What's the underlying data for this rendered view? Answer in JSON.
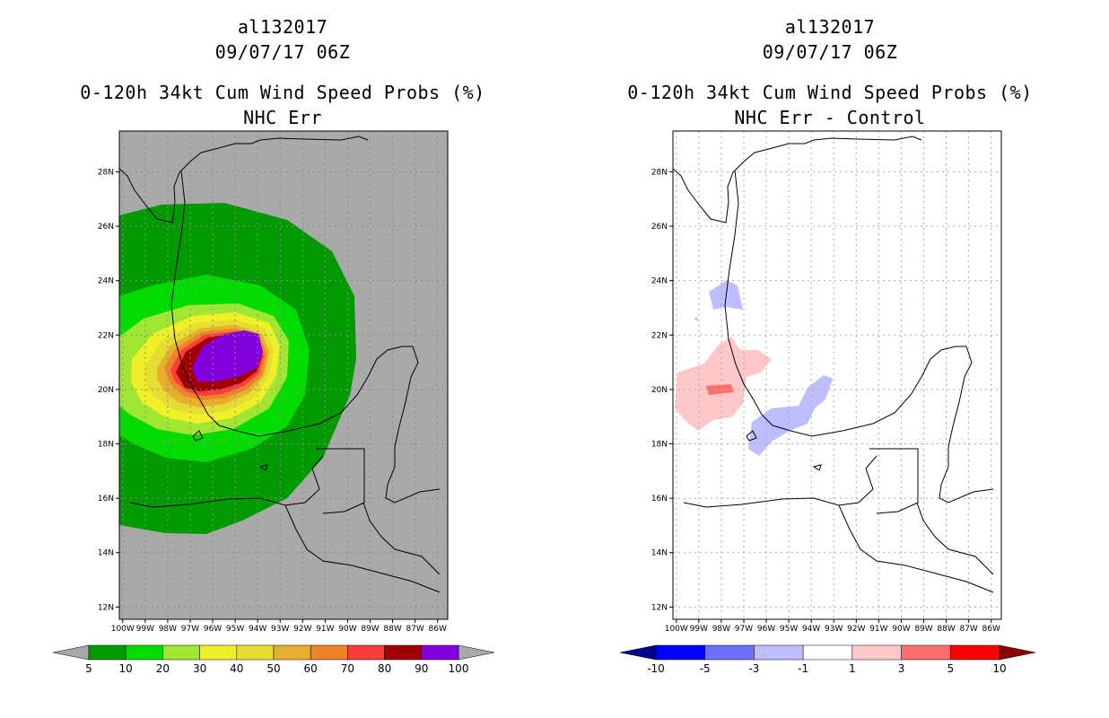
{
  "left_panel": {
    "storm_id": "al132017",
    "datetime": "09/07/17 06Z",
    "product": "0-120h 34kt Cum Wind Speed Probs (%)",
    "subtitle": "NHC Err",
    "background_color": "#a9a9a9",
    "colorbar": {
      "labels": [
        "5",
        "10",
        "20",
        "30",
        "40",
        "50",
        "60",
        "70",
        "80",
        "90",
        "100"
      ],
      "colors": [
        "#009a00",
        "#00dc00",
        "#a0e632",
        "#f0f028",
        "#e6dc32",
        "#e6af2d",
        "#f08228",
        "#fa3c3c",
        "#a00000",
        "#8200dc"
      ],
      "low_extend_color": "#a9a9a9",
      "high_extend_color": "#a9a9a9"
    }
  },
  "right_panel": {
    "storm_id": "al132017",
    "datetime": "09/07/17 06Z",
    "product": "0-120h 34kt Cum Wind Speed Probs (%)",
    "subtitle": "NHC Err - Control",
    "background_color": "#ffffff",
    "colorbar": {
      "labels": [
        "-10",
        "-5",
        "-3",
        "-1",
        "1",
        "3",
        "5",
        "10"
      ],
      "colors": [
        "#0000ff",
        "#6e6eff",
        "#bebeff",
        "#ffffff",
        "#ffc8c8",
        "#ff6e6e",
        "#ff0000"
      ],
      "low_extend_color": "#00008c",
      "high_extend_color": "#8c0000"
    }
  },
  "map_axes": {
    "lat_labels": [
      "28N",
      "26N",
      "24N",
      "22N",
      "20N",
      "18N",
      "16N",
      "14N",
      "12N"
    ],
    "lon_labels": [
      "100W",
      "99W",
      "98W",
      "97W",
      "96W",
      "95W",
      "94W",
      "93W",
      "92W",
      "91W",
      "90W",
      "89W",
      "88W",
      "87W",
      "86W"
    ]
  },
  "chart_data": [
    {
      "type": "heatmap",
      "title": "0-120h 34kt Cum Wind Speed Probs (%) NHC Err",
      "storm": "al132017",
      "valid": "09/07/17 06Z",
      "lon_range": [
        -100,
        -86
      ],
      "lat_range": [
        11.5,
        29.5
      ],
      "contour_levels": [
        5,
        10,
        20,
        30,
        40,
        50,
        60,
        70,
        80,
        90,
        100
      ],
      "max_probability_center": {
        "lon": -94.8,
        "lat": 20.9,
        "value": 100
      }
    },
    {
      "type": "heatmap",
      "title": "0-120h 34kt Cum Wind Speed Probs (%) NHC Err - Control",
      "storm": "al132017",
      "valid": "09/07/17 06Z",
      "lon_range": [
        -100,
        -86
      ],
      "lat_range": [
        11.5,
        29.5
      ],
      "contour_levels": [
        -10,
        -5,
        -3,
        -1,
        1,
        3,
        5,
        10
      ]
    }
  ]
}
